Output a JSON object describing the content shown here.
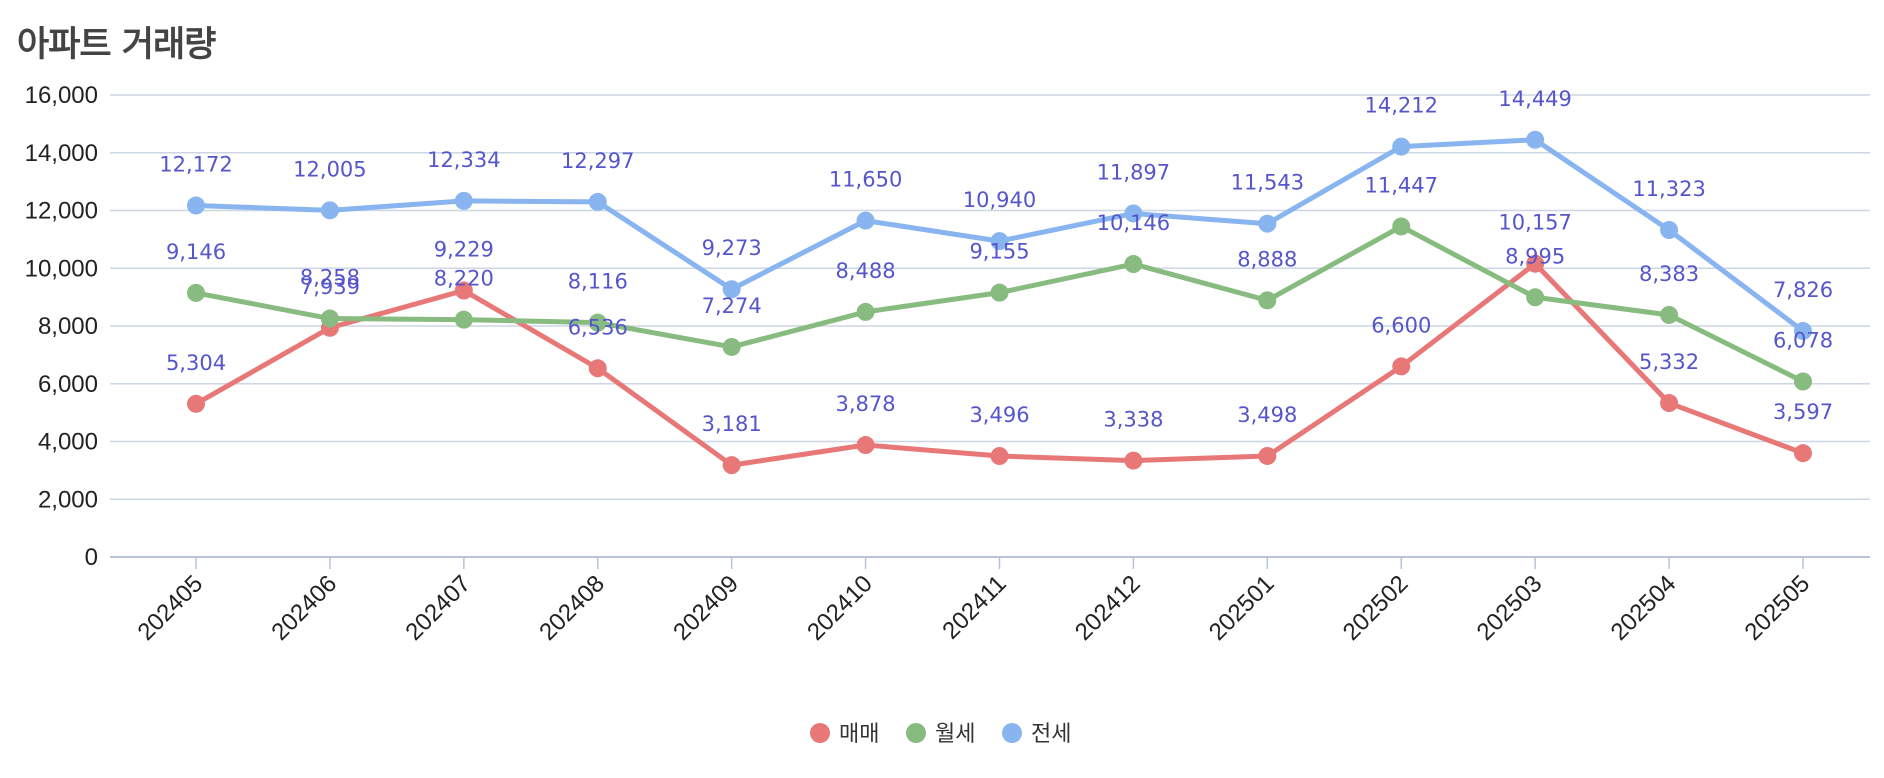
{
  "chart_data": {
    "type": "line",
    "title": "아파트 거래량",
    "categories": [
      "202405",
      "202406",
      "202407",
      "202408",
      "202409",
      "202410",
      "202411",
      "202412",
      "202501",
      "202502",
      "202503",
      "202504",
      "202505"
    ],
    "series": [
      {
        "name": "매매",
        "color": "#e87878",
        "values": [
          5304,
          7939,
          9229,
          6536,
          3181,
          3878,
          3496,
          3338,
          3498,
          6600,
          10157,
          5332,
          3597
        ],
        "labels": [
          "5,304",
          "7,939",
          "9,229",
          "6,536",
          "3,181",
          "3,878",
          "3,496",
          "3,338",
          "3,498",
          "6,600",
          "10,157",
          "5,332",
          "3,597"
        ]
      },
      {
        "name": "월세",
        "color": "#88bb80",
        "values": [
          9146,
          8258,
          8220,
          8116,
          7274,
          8488,
          9155,
          10146,
          8888,
          11447,
          8995,
          8383,
          6078
        ],
        "labels": [
          "9,146",
          "8,258",
          "8,220",
          "8,116",
          "7,274",
          "8,488",
          "9,155",
          "10,146",
          "8,888",
          "11,447",
          "8,995",
          "8,383",
          "6,078"
        ]
      },
      {
        "name": "전세",
        "color": "#88b4f0",
        "values": [
          12172,
          12005,
          12334,
          12297,
          9273,
          11650,
          10940,
          11897,
          11543,
          14212,
          14449,
          11323,
          7826
        ],
        "labels": [
          "12,172",
          "12,005",
          "12,334",
          "12,297",
          "9,273",
          "11,650",
          "10,940",
          "11,897",
          "11,543",
          "14,212",
          "14,449",
          "11,323",
          "7,826"
        ]
      }
    ],
    "ylim": [
      0,
      16000
    ],
    "yticks": [
      0,
      2000,
      4000,
      6000,
      8000,
      10000,
      12000,
      14000,
      16000
    ],
    "ytick_labels": [
      "0",
      "2,000",
      "4,000",
      "6,000",
      "8,000",
      "10,000",
      "12,000",
      "14,000",
      "16,000"
    ],
    "grid": true,
    "legend": "bottom-center",
    "xlabel": "",
    "ylabel": ""
  }
}
